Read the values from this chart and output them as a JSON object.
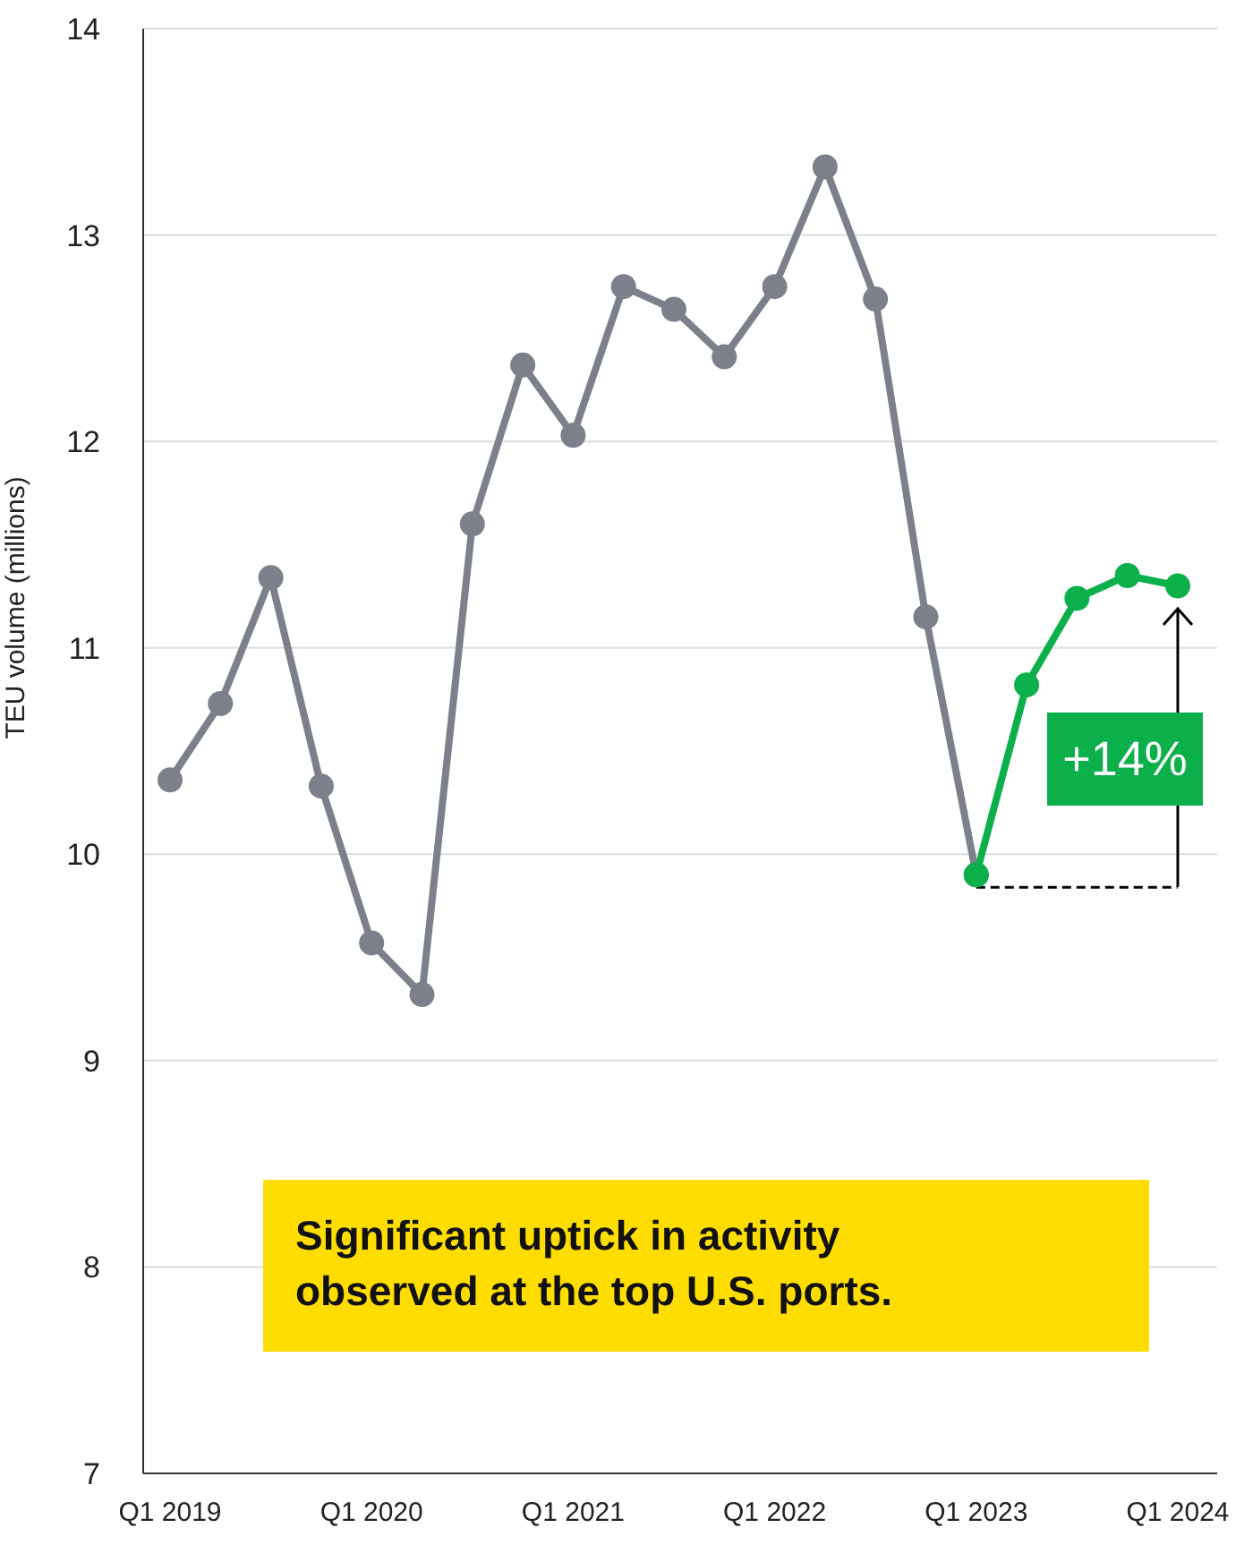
{
  "chart_data": {
    "type": "line",
    "ylabel": "TEU volume (millions)",
    "categories": [
      "Q1 2019",
      null,
      null,
      null,
      "Q1 2020",
      null,
      null,
      null,
      "Q1 2021",
      null,
      null,
      null,
      "Q1 2022",
      null,
      null,
      null,
      "Q1 2023",
      null,
      null,
      null,
      "Q1 2024"
    ],
    "series": [
      {
        "color": "#7b808b",
        "values": [
          10.36,
          10.73,
          11.34,
          10.33,
          9.57,
          9.32,
          11.6,
          12.37,
          12.03,
          12.75,
          12.64,
          12.41,
          12.75,
          13.33,
          12.69,
          11.15,
          9.9,
          null,
          null,
          null,
          null
        ]
      },
      {
        "color": "#0bb04b",
        "values": [
          null,
          null,
          null,
          null,
          null,
          null,
          null,
          null,
          null,
          null,
          null,
          null,
          null,
          null,
          null,
          null,
          9.9,
          10.82,
          11.24,
          11.35,
          11.3
        ]
      }
    ],
    "ylim": [
      7,
      14
    ],
    "yticks": [
      7,
      8,
      9,
      10,
      11,
      12,
      13,
      14
    ],
    "grid": "y",
    "marker": "circle",
    "line_style": "solid",
    "ref_lines": [
      {
        "axis": "y",
        "value": 9.84,
        "line_style": "dashed",
        "color": "#000000"
      }
    ],
    "annotations": [
      "Significant uptick in activity observed at the top U.S. ports.",
      "+14%"
    ]
  }
}
